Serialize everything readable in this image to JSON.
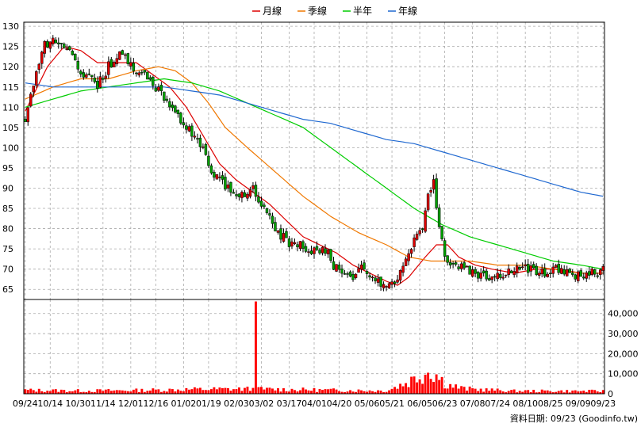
{
  "chart_data": {
    "type": "candlestick",
    "legend": [
      {
        "label": "月線",
        "color": "#dd0000"
      },
      {
        "label": "季線",
        "color": "#f07800"
      },
      {
        "label": "半年",
        "color": "#00cc00"
      },
      {
        "label": "年線",
        "color": "#1f68d0"
      }
    ],
    "price_axis": {
      "ylim": [
        62.5,
        131
      ],
      "ticks": [
        65,
        70,
        75,
        80,
        85,
        90,
        95,
        100,
        105,
        110,
        115,
        120,
        125,
        130
      ]
    },
    "volume_axis": {
      "ylim": [
        0,
        47000
      ],
      "ticks": [
        0,
        10000,
        20000,
        30000,
        40000
      ],
      "tick_labels": [
        "0",
        "10,000",
        "20,000",
        "30,000",
        "40,000"
      ]
    },
    "x_tick_labels": [
      "09/24",
      "10/14",
      "10/30",
      "11/14",
      "12/01",
      "12/16",
      "01/02",
      "01/19",
      "02/03",
      "03/02",
      "03/17",
      "04/01",
      "04/20",
      "05/06",
      "05/21",
      "06/05",
      "06/23",
      "07/08",
      "07/24",
      "08/10",
      "08/25",
      "09/09",
      "09/23"
    ],
    "close_keypoints": [
      [
        0,
        107
      ],
      [
        3,
        115
      ],
      [
        6,
        124
      ],
      [
        9,
        127
      ],
      [
        12,
        125
      ],
      [
        15,
        124
      ],
      [
        18,
        121
      ],
      [
        20,
        117
      ],
      [
        23,
        118
      ],
      [
        26,
        115
      ],
      [
        29,
        119
      ],
      [
        32,
        122
      ],
      [
        35,
        123
      ],
      [
        37,
        121
      ],
      [
        39,
        120
      ],
      [
        42,
        118
      ],
      [
        45,
        117
      ],
      [
        48,
        114
      ],
      [
        50,
        112
      ],
      [
        53,
        109
      ],
      [
        56,
        107
      ],
      [
        60,
        103
      ],
      [
        64,
        99
      ],
      [
        67,
        94
      ],
      [
        70,
        92
      ],
      [
        73,
        90
      ],
      [
        76,
        89
      ],
      [
        79,
        88
      ],
      [
        82,
        91
      ],
      [
        84,
        86
      ],
      [
        87,
        84
      ],
      [
        90,
        80
      ],
      [
        93,
        78
      ],
      [
        96,
        76
      ],
      [
        99,
        76
      ],
      [
        102,
        74
      ],
      [
        105,
        74
      ],
      [
        108,
        75
      ],
      [
        111,
        71
      ],
      [
        114,
        69
      ],
      [
        117,
        67
      ],
      [
        120,
        71
      ],
      [
        123,
        68
      ],
      [
        126,
        67
      ],
      [
        129,
        65
      ],
      [
        132,
        66
      ],
      [
        135,
        69
      ],
      [
        138,
        74
      ],
      [
        140,
        78
      ],
      [
        143,
        80
      ],
      [
        145,
        88
      ],
      [
        147,
        92
      ],
      [
        149,
        80
      ],
      [
        151,
        73
      ],
      [
        154,
        71
      ],
      [
        158,
        70
      ],
      [
        162,
        69
      ],
      [
        166,
        68
      ],
      [
        170,
        68
      ],
      [
        174,
        69
      ],
      [
        178,
        70
      ],
      [
        182,
        70
      ],
      [
        186,
        69
      ],
      [
        190,
        70
      ],
      [
        194,
        70
      ],
      [
        197,
        69
      ],
      [
        200,
        68
      ],
      [
        203,
        69
      ],
      [
        206,
        69
      ],
      [
        208,
        70
      ]
    ],
    "volume_keypoints": [
      [
        0,
        1800
      ],
      [
        20,
        1500
      ],
      [
        40,
        1700
      ],
      [
        60,
        2200
      ],
      [
        80,
        2400
      ],
      [
        110,
        1800
      ],
      [
        130,
        1500
      ],
      [
        138,
        6000
      ],
      [
        143,
        10000
      ],
      [
        146,
        12000
      ],
      [
        149,
        8000
      ],
      [
        152,
        4500
      ],
      [
        158,
        2500
      ],
      [
        175,
        1400
      ],
      [
        208,
        1300
      ]
    ],
    "volume_spike": [
      83,
      46000
    ],
    "ma_series": [
      {
        "name": "月線",
        "points": [
          [
            0,
            109
          ],
          [
            8,
            120
          ],
          [
            14,
            125
          ],
          [
            20,
            124
          ],
          [
            26,
            121
          ],
          [
            34,
            121
          ],
          [
            40,
            121
          ],
          [
            46,
            118
          ],
          [
            52,
            115
          ],
          [
            58,
            110
          ],
          [
            64,
            103
          ],
          [
            70,
            96
          ],
          [
            76,
            92
          ],
          [
            82,
            89
          ],
          [
            88,
            86
          ],
          [
            94,
            82
          ],
          [
            100,
            78
          ],
          [
            106,
            76
          ],
          [
            112,
            74
          ],
          [
            118,
            71
          ],
          [
            124,
            69
          ],
          [
            130,
            67
          ],
          [
            134,
            66
          ],
          [
            138,
            68
          ],
          [
            144,
            73
          ],
          [
            148,
            76
          ],
          [
            152,
            76
          ],
          [
            156,
            73
          ],
          [
            162,
            71
          ],
          [
            168,
            70
          ],
          [
            176,
            69
          ],
          [
            184,
            70
          ],
          [
            192,
            70
          ],
          [
            200,
            69
          ],
          [
            208,
            69
          ]
        ]
      },
      {
        "name": "季線",
        "points": [
          [
            0,
            112
          ],
          [
            10,
            115
          ],
          [
            20,
            117
          ],
          [
            30,
            117
          ],
          [
            40,
            119
          ],
          [
            48,
            120
          ],
          [
            54,
            119
          ],
          [
            60,
            116
          ],
          [
            66,
            111
          ],
          [
            72,
            105
          ],
          [
            80,
            100
          ],
          [
            90,
            94
          ],
          [
            100,
            88
          ],
          [
            110,
            83
          ],
          [
            120,
            79
          ],
          [
            130,
            76
          ],
          [
            138,
            73
          ],
          [
            146,
            72
          ],
          [
            152,
            72
          ],
          [
            160,
            72
          ],
          [
            170,
            71
          ],
          [
            180,
            71
          ],
          [
            190,
            70
          ],
          [
            200,
            69
          ],
          [
            208,
            69
          ]
        ]
      },
      {
        "name": "半年",
        "points": [
          [
            0,
            110
          ],
          [
            10,
            112
          ],
          [
            20,
            114
          ],
          [
            30,
            115
          ],
          [
            40,
            116
          ],
          [
            50,
            117
          ],
          [
            60,
            116
          ],
          [
            70,
            114
          ],
          [
            80,
            111
          ],
          [
            90,
            108
          ],
          [
            100,
            105
          ],
          [
            110,
            100
          ],
          [
            120,
            95
          ],
          [
            130,
            90
          ],
          [
            140,
            85
          ],
          [
            150,
            81
          ],
          [
            160,
            78
          ],
          [
            170,
            76
          ],
          [
            180,
            74
          ],
          [
            190,
            72
          ],
          [
            200,
            71
          ],
          [
            208,
            70
          ]
        ]
      },
      {
        "name": "年線",
        "points": [
          [
            0,
            116
          ],
          [
            10,
            115
          ],
          [
            20,
            115
          ],
          [
            30,
            115
          ],
          [
            40,
            115
          ],
          [
            50,
            115
          ],
          [
            60,
            114
          ],
          [
            70,
            113
          ],
          [
            80,
            111
          ],
          [
            90,
            109
          ],
          [
            100,
            107
          ],
          [
            110,
            106
          ],
          [
            120,
            104
          ],
          [
            130,
            102
          ],
          [
            140,
            101
          ],
          [
            150,
            99
          ],
          [
            160,
            97
          ],
          [
            170,
            95
          ],
          [
            180,
            93
          ],
          [
            190,
            91
          ],
          [
            200,
            89
          ],
          [
            208,
            88
          ]
        ]
      }
    ],
    "footer": "資料日期: 09/23   (Goodinfo.tw)"
  },
  "colors": {
    "up": "#dd0000",
    "down": "#00a000",
    "wick": "#000000",
    "grid": "#aaaaaa",
    "volume": "#ff0000",
    "frame": "#000000"
  }
}
